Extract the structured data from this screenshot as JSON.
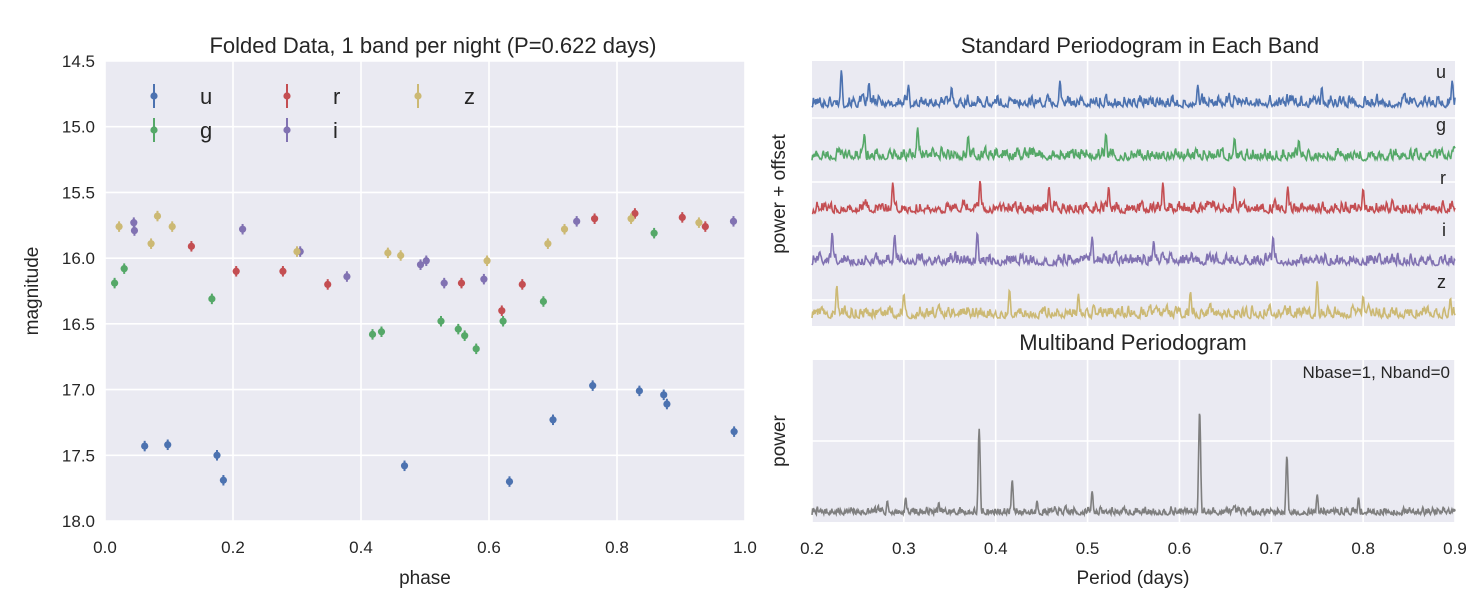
{
  "colors": {
    "u": "#4c72b0",
    "g": "#55a868",
    "r": "#c44e52",
    "i": "#8172b2",
    "z": "#ccb974",
    "multi": "#7f7f7f",
    "axes_bg": "#eaeaf2",
    "grid": "#ffffff"
  },
  "chart_data": [
    {
      "type": "scatter",
      "title": "Folded Data, 1 band per night (P=0.622 days)",
      "xlabel": "phase",
      "ylabel": "magnitude",
      "xlim": [
        0.0,
        1.0
      ],
      "ylim": [
        18.0,
        14.5
      ],
      "y_inverted": true,
      "grid": true,
      "legend_placement": "upper-left",
      "xticks": [
        "0.0",
        "0.2",
        "0.4",
        "0.6",
        "0.8",
        "1.0"
      ],
      "xtick_values": [
        0.0,
        0.2,
        0.4,
        0.6,
        0.8,
        1.0
      ],
      "yticks": [
        "14.5",
        "15.0",
        "15.5",
        "16.0",
        "16.5",
        "17.0",
        "17.5",
        "18.0"
      ],
      "ytick_values": [
        14.5,
        15.0,
        15.5,
        16.0,
        16.5,
        17.0,
        17.5,
        18.0
      ],
      "error": 0.04,
      "series": [
        {
          "name": "u",
          "points": [
            [
              0.062,
              17.43
            ],
            [
              0.098,
              17.42
            ],
            [
              0.175,
              17.5
            ],
            [
              0.185,
              17.69
            ],
            [
              0.468,
              17.58
            ],
            [
              0.632,
              17.7
            ],
            [
              0.7,
              17.23
            ],
            [
              0.762,
              16.97
            ],
            [
              0.835,
              17.01
            ],
            [
              0.873,
              17.04
            ],
            [
              0.878,
              17.11
            ],
            [
              0.983,
              17.32
            ]
          ]
        },
        {
          "name": "g",
          "points": [
            [
              0.015,
              16.19
            ],
            [
              0.03,
              16.08
            ],
            [
              0.167,
              16.31
            ],
            [
              0.418,
              16.58
            ],
            [
              0.432,
              16.56
            ],
            [
              0.525,
              16.48
            ],
            [
              0.552,
              16.54
            ],
            [
              0.562,
              16.59
            ],
            [
              0.58,
              16.69
            ],
            [
              0.622,
              16.48
            ],
            [
              0.685,
              16.33
            ],
            [
              0.858,
              15.81
            ]
          ]
        },
        {
          "name": "r",
          "points": [
            [
              0.135,
              15.91
            ],
            [
              0.205,
              16.1
            ],
            [
              0.278,
              16.1
            ],
            [
              0.348,
              16.2
            ],
            [
              0.557,
              16.19
            ],
            [
              0.62,
              16.4
            ],
            [
              0.652,
              16.2
            ],
            [
              0.765,
              15.7
            ],
            [
              0.828,
              15.66
            ],
            [
              0.902,
              15.69
            ],
            [
              0.938,
              15.76
            ]
          ]
        },
        {
          "name": "i",
          "points": [
            [
              0.045,
              15.73
            ],
            [
              0.046,
              15.79
            ],
            [
              0.215,
              15.78
            ],
            [
              0.305,
              15.95
            ],
            [
              0.378,
              16.14
            ],
            [
              0.493,
              16.05
            ],
            [
              0.502,
              16.02
            ],
            [
              0.53,
              16.19
            ],
            [
              0.592,
              16.16
            ],
            [
              0.737,
              15.72
            ],
            [
              0.982,
              15.72
            ]
          ]
        },
        {
          "name": "z",
          "points": [
            [
              0.022,
              15.76
            ],
            [
              0.072,
              15.89
            ],
            [
              0.082,
              15.68
            ],
            [
              0.105,
              15.76
            ],
            [
              0.3,
              15.95
            ],
            [
              0.442,
              15.96
            ],
            [
              0.462,
              15.98
            ],
            [
              0.597,
              16.02
            ],
            [
              0.692,
              15.89
            ],
            [
              0.718,
              15.78
            ],
            [
              0.822,
              15.7
            ],
            [
              0.928,
              15.73
            ]
          ]
        }
      ]
    },
    {
      "type": "line",
      "title": "Standard Periodogram in Each Band",
      "ylabel": "power + offset",
      "xlim": [
        0.2,
        0.9
      ],
      "grid": true,
      "series": [
        {
          "name": "u",
          "peaks": [
            [
              0.232,
              0.95
            ],
            [
              0.262,
              0.65
            ],
            [
              0.305,
              0.6
            ],
            [
              0.352,
              0.55
            ],
            [
              0.47,
              0.7
            ],
            [
              0.62,
              0.6
            ],
            [
              0.755,
              0.55
            ],
            [
              0.897,
              0.7
            ]
          ]
        },
        {
          "name": "g",
          "peaks": [
            [
              0.257,
              0.7
            ],
            [
              0.315,
              0.85
            ],
            [
              0.37,
              0.65
            ],
            [
              0.52,
              0.7
            ],
            [
              0.66,
              0.6
            ],
            [
              0.73,
              0.55
            ]
          ]
        },
        {
          "name": "r",
          "peaks": [
            [
              0.288,
              0.8
            ],
            [
              0.383,
              0.85
            ],
            [
              0.458,
              0.7
            ],
            [
              0.523,
              0.7
            ],
            [
              0.582,
              0.8
            ],
            [
              0.66,
              0.7
            ],
            [
              0.718,
              0.7
            ],
            [
              0.8,
              0.65
            ]
          ]
        },
        {
          "name": "i",
          "peaks": [
            [
              0.222,
              0.85
            ],
            [
              0.29,
              0.8
            ],
            [
              0.38,
              0.85
            ],
            [
              0.505,
              0.75
            ],
            [
              0.572,
              0.65
            ],
            [
              0.702,
              0.75
            ]
          ]
        },
        {
          "name": "z",
          "peaks": [
            [
              0.227,
              0.85
            ],
            [
              0.3,
              0.65
            ],
            [
              0.415,
              0.75
            ],
            [
              0.49,
              0.65
            ],
            [
              0.612,
              0.7
            ],
            [
              0.75,
              0.95
            ],
            [
              0.8,
              0.6
            ],
            [
              0.895,
              0.55
            ]
          ]
        }
      ]
    },
    {
      "type": "line",
      "title": "Multiband Periodogram",
      "annotation": "Nbase=1, Nband=0",
      "xlabel": "Period (days)",
      "ylabel": "power",
      "xlim": [
        0.2,
        0.9
      ],
      "xticks": [
        "0.2",
        "0.3",
        "0.4",
        "0.5",
        "0.6",
        "0.7",
        "0.8",
        "0.9"
      ],
      "xtick_values": [
        0.2,
        0.3,
        0.4,
        0.5,
        0.6,
        0.7,
        0.8,
        0.9
      ],
      "grid": true,
      "series": [
        {
          "name": "multiband",
          "peaks": [
            [
              0.382,
              0.57
            ],
            [
              0.622,
              0.68
            ],
            [
              0.717,
              0.4
            ],
            [
              0.418,
              0.25
            ],
            [
              0.505,
              0.18
            ],
            [
              0.75,
              0.16
            ],
            [
              0.302,
              0.14
            ],
            [
              0.795,
              0.14
            ],
            [
              0.282,
              0.12
            ],
            [
              0.338,
              0.11
            ],
            [
              0.445,
              0.12
            ],
            [
              0.865,
              0.08
            ]
          ]
        }
      ]
    }
  ]
}
